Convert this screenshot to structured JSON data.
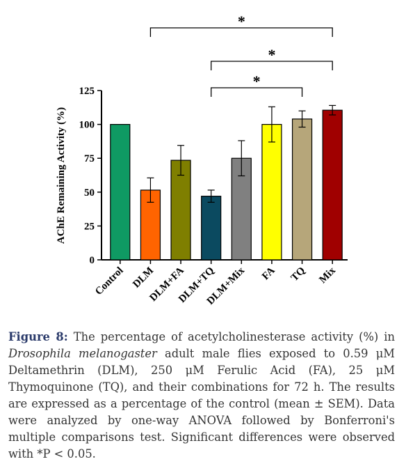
{
  "chart_data": {
    "type": "bar",
    "ylabel": "AChE Remaining Activity (%)",
    "categories": [
      "Control",
      "DLM",
      "DLM+FA",
      "DLM+TQ",
      "DLM+Mix",
      "FA",
      "TQ",
      "Mix"
    ],
    "values": [
      100,
      51.5,
      73.5,
      47,
      75,
      100,
      104,
      110.5
    ],
    "errors": [
      null,
      9,
      11,
      4.5,
      13,
      13,
      6,
      3.5
    ],
    "colors": [
      "#0f9a63",
      "#ff6400",
      "#7f7f00",
      "#0b4a60",
      "#808080",
      "#ffff00",
      "#b6a67a",
      "#a00000"
    ],
    "ylim": [
      0,
      125
    ],
    "yticks": [
      0,
      25,
      50,
      75,
      100,
      125
    ],
    "annotations": [
      {
        "from": 1,
        "to": 7,
        "label": "*"
      },
      {
        "from": 3,
        "to": 7,
        "label": "*"
      },
      {
        "from": 3,
        "to": 6,
        "label": "*"
      }
    ]
  },
  "caption": {
    "label": "Figure 8:",
    "text_before": "The percentage of acetylcholinesterase activity (%) in",
    "species": "Drosophila melanogaster",
    "text_after": "adult male flies exposed to 0.59 μM Deltamethrin (DLM), 250 μM Ferulic Acid (FA), 25 μM Thymoquinone (TQ), and their combinations for 72 h. The results are expressed as a percentage of the control (mean ± SEM). Data were analyzed by one-way ANOVA followed by Bonferroni's multiple comparisons test. Significant differences were observed with *P < 0.05."
  }
}
